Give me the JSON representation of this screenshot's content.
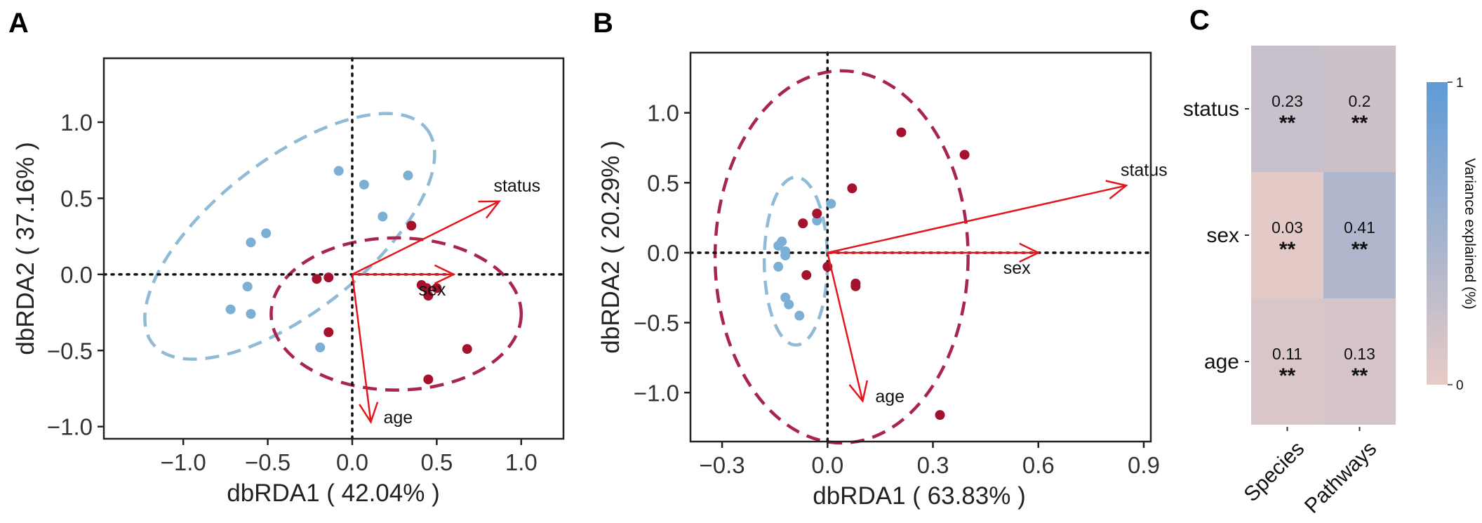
{
  "panels": {
    "a": {
      "letter": "A"
    },
    "b": {
      "letter": "B"
    },
    "c": {
      "letter": "C"
    }
  },
  "chart_data": [
    {
      "id": "A",
      "type": "scatter",
      "xlabel": "dbRDA1 ( 42.04% )",
      "ylabel": "dbRDA2 ( 37.16% )",
      "xlim": [
        -1.47,
        1.25
      ],
      "ylim": [
        -1.08,
        1.42
      ],
      "xticks": [
        -1.0,
        -0.5,
        0.0,
        0.5,
        1.0
      ],
      "xtick_labels": [
        "−1.0",
        "−0.5",
        "0.0",
        "0.5",
        "1.0"
      ],
      "yticks": [
        -1.0,
        -0.5,
        0.0,
        0.5,
        1.0
      ],
      "ytick_labels": [
        "−1.0",
        "−0.5",
        "0.0",
        "0.5",
        "1.0"
      ],
      "grid": false,
      "series": [
        {
          "color": "#7bafd4",
          "points": [
            [
              -0.08,
              0.68
            ],
            [
              0.07,
              0.59
            ],
            [
              0.33,
              0.65
            ],
            [
              0.18,
              0.38
            ],
            [
              -0.51,
              0.27
            ],
            [
              -0.6,
              0.21
            ],
            [
              -0.62,
              -0.08
            ],
            [
              -0.72,
              -0.23
            ],
            [
              -0.6,
              -0.26
            ],
            [
              -0.19,
              -0.48
            ]
          ]
        },
        {
          "color": "#a4122d",
          "points": [
            [
              0.35,
              0.32
            ],
            [
              -0.21,
              -0.03
            ],
            [
              -0.14,
              -0.02
            ],
            [
              0.41,
              -0.07
            ],
            [
              0.44,
              -0.09
            ],
            [
              0.45,
              -0.14
            ],
            [
              0.5,
              -0.09
            ],
            [
              -0.14,
              -0.38
            ],
            [
              0.68,
              -0.49
            ],
            [
              0.45,
              -0.69
            ]
          ]
        }
      ],
      "ellipses": [
        {
          "color": "#8fbbd6",
          "cx": -0.37,
          "cy": 0.25,
          "rx": 1.03,
          "ry": 0.5,
          "angle_deg": 38
        },
        {
          "color": "#a8264d",
          "cx": 0.26,
          "cy": -0.26,
          "rx": 0.74,
          "ry": 0.5,
          "angle_deg": 0
        }
      ],
      "vectors": [
        {
          "name": "status",
          "x": 0.87,
          "y": 0.48
        },
        {
          "name": "sex",
          "x": 0.6,
          "y": 0.0
        },
        {
          "name": "age",
          "x": 0.11,
          "y": -0.97
        }
      ]
    },
    {
      "id": "B",
      "type": "scatter",
      "xlabel": "dbRDA1 ( 63.83% )",
      "ylabel": "dbRDA2 ( 20.29% )",
      "xlim": [
        -0.39,
        0.92
      ],
      "ylim": [
        -1.35,
        1.43
      ],
      "xticks": [
        -0.3,
        0.0,
        0.3,
        0.6,
        0.9
      ],
      "xtick_labels": [
        "−0.3",
        "0.0",
        "0.3",
        "0.6",
        "0.9"
      ],
      "yticks": [
        -1.0,
        -0.5,
        0.0,
        0.5,
        1.0
      ],
      "ytick_labels": [
        "−1.0",
        "−0.5",
        "0.0",
        "0.5",
        "1.0"
      ],
      "grid": false,
      "series": [
        {
          "color": "#7bafd4",
          "points": [
            [
              0.01,
              0.35
            ],
            [
              -0.03,
              0.23
            ],
            [
              -0.13,
              0.08
            ],
            [
              -0.14,
              0.05
            ],
            [
              -0.12,
              0.01
            ],
            [
              -0.12,
              -0.02
            ],
            [
              -0.14,
              -0.1
            ],
            [
              -0.12,
              -0.32
            ],
            [
              -0.11,
              -0.37
            ],
            [
              -0.08,
              -0.45
            ]
          ]
        },
        {
          "color": "#a4122d",
          "points": [
            [
              0.21,
              0.86
            ],
            [
              0.39,
              0.7
            ],
            [
              0.07,
              0.46
            ],
            [
              -0.03,
              0.28
            ],
            [
              -0.07,
              0.21
            ],
            [
              -0.06,
              -0.16
            ],
            [
              0.0,
              -0.1
            ],
            [
              0.08,
              -0.22
            ],
            [
              0.08,
              -0.24
            ],
            [
              0.32,
              -1.16
            ]
          ]
        }
      ],
      "ellipses": [
        {
          "color": "#8fbbd6",
          "cx": -0.09,
          "cy": -0.06,
          "rx": 0.09,
          "ry": 0.6,
          "angle_deg": 0
        },
        {
          "color": "#a8264d",
          "cx": 0.04,
          "cy": -0.03,
          "rx": 0.36,
          "ry": 1.33,
          "angle_deg": 0
        }
      ],
      "vectors": [
        {
          "name": "status",
          "x": 0.85,
          "y": 0.48
        },
        {
          "name": "sex",
          "x": 0.6,
          "y": 0.0
        },
        {
          "name": "age",
          "x": 0.1,
          "y": -1.06
        }
      ]
    },
    {
      "id": "C",
      "type": "heatmap",
      "rows": [
        "status",
        "sex",
        "age"
      ],
      "columns": [
        "Species",
        "Pathways"
      ],
      "values": [
        [
          0.23,
          0.2
        ],
        [
          0.03,
          0.41
        ],
        [
          0.11,
          0.13
        ]
      ],
      "significance": [
        [
          "**",
          "**"
        ],
        [
          "**",
          "**"
        ],
        [
          "**",
          "**"
        ]
      ],
      "colorbar": {
        "title": "Variance explained (%)",
        "min": 0,
        "max": 1,
        "min_label": "0",
        "max_label": "1",
        "low_color": "#e8cbc6",
        "high_color": "#5f9bd6"
      }
    }
  ]
}
